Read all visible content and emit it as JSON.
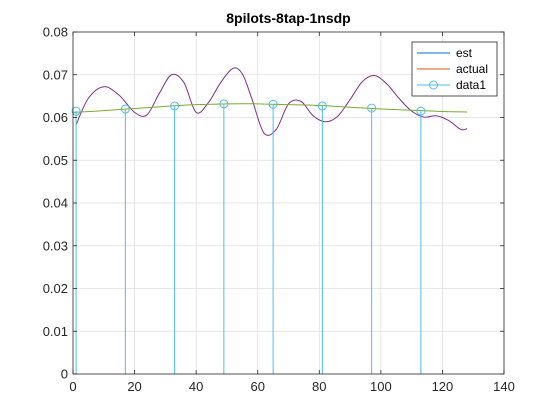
{
  "chart_data": {
    "type": "line",
    "title": "8pilots-8tap-1nsdp",
    "xlabel": "",
    "ylabel": "",
    "xlim": [
      0,
      140
    ],
    "ylim": [
      0,
      0.08
    ],
    "xticks": [
      0,
      20,
      40,
      60,
      80,
      100,
      120,
      140
    ],
    "yticks": [
      0,
      0.01,
      0.02,
      0.03,
      0.04,
      0.05,
      0.06,
      0.07,
      0.08
    ],
    "xtick_labels": [
      "0",
      "20",
      "40",
      "60",
      "80",
      "100",
      "120",
      "140"
    ],
    "ytick_labels": [
      "0",
      "0.01",
      "0.02",
      "0.03",
      "0.04",
      "0.05",
      "0.06",
      "0.07",
      "0.08"
    ],
    "grid": true,
    "legend_position": "top-right",
    "series": [
      {
        "name": "est",
        "kind": "line",
        "color": "#7e2f8e",
        "legend_color": "#0072bd",
        "x": [
          1,
          5,
          10,
          15,
          20,
          24,
          28,
          32,
          36,
          40,
          44,
          48,
          52,
          55,
          58,
          62,
          66,
          70,
          74,
          78,
          82,
          86,
          90,
          94,
          98,
          102,
          106,
          110,
          114,
          118,
          122,
          126,
          128
        ],
        "y": [
          0.0583,
          0.0645,
          0.0672,
          0.0652,
          0.0612,
          0.0606,
          0.0656,
          0.07,
          0.0682,
          0.0612,
          0.0635,
          0.0682,
          0.0715,
          0.0702,
          0.0646,
          0.0564,
          0.0572,
          0.0632,
          0.0638,
          0.0604,
          0.059,
          0.0603,
          0.0642,
          0.0684,
          0.0698,
          0.0678,
          0.0644,
          0.0615,
          0.0601,
          0.0604,
          0.0593,
          0.0572,
          0.0574
        ]
      },
      {
        "name": "actual",
        "kind": "line",
        "color": "#77ac30",
        "legend_color": "#d95319",
        "x": [
          0,
          10,
          20,
          30,
          40,
          50,
          60,
          70,
          80,
          90,
          100,
          110,
          120,
          128
        ],
        "y": [
          0.0612,
          0.0616,
          0.0621,
          0.0626,
          0.063,
          0.0632,
          0.0632,
          0.063,
          0.0628,
          0.0624,
          0.062,
          0.0617,
          0.0614,
          0.0613
        ]
      },
      {
        "name": "data1",
        "kind": "stem",
        "color": "#4dbeee",
        "x": [
          1,
          17,
          33,
          49,
          65,
          81,
          97,
          113
        ],
        "y": [
          0.0615,
          0.062,
          0.0627,
          0.0632,
          0.0631,
          0.0627,
          0.0622,
          0.0615
        ]
      }
    ]
  }
}
